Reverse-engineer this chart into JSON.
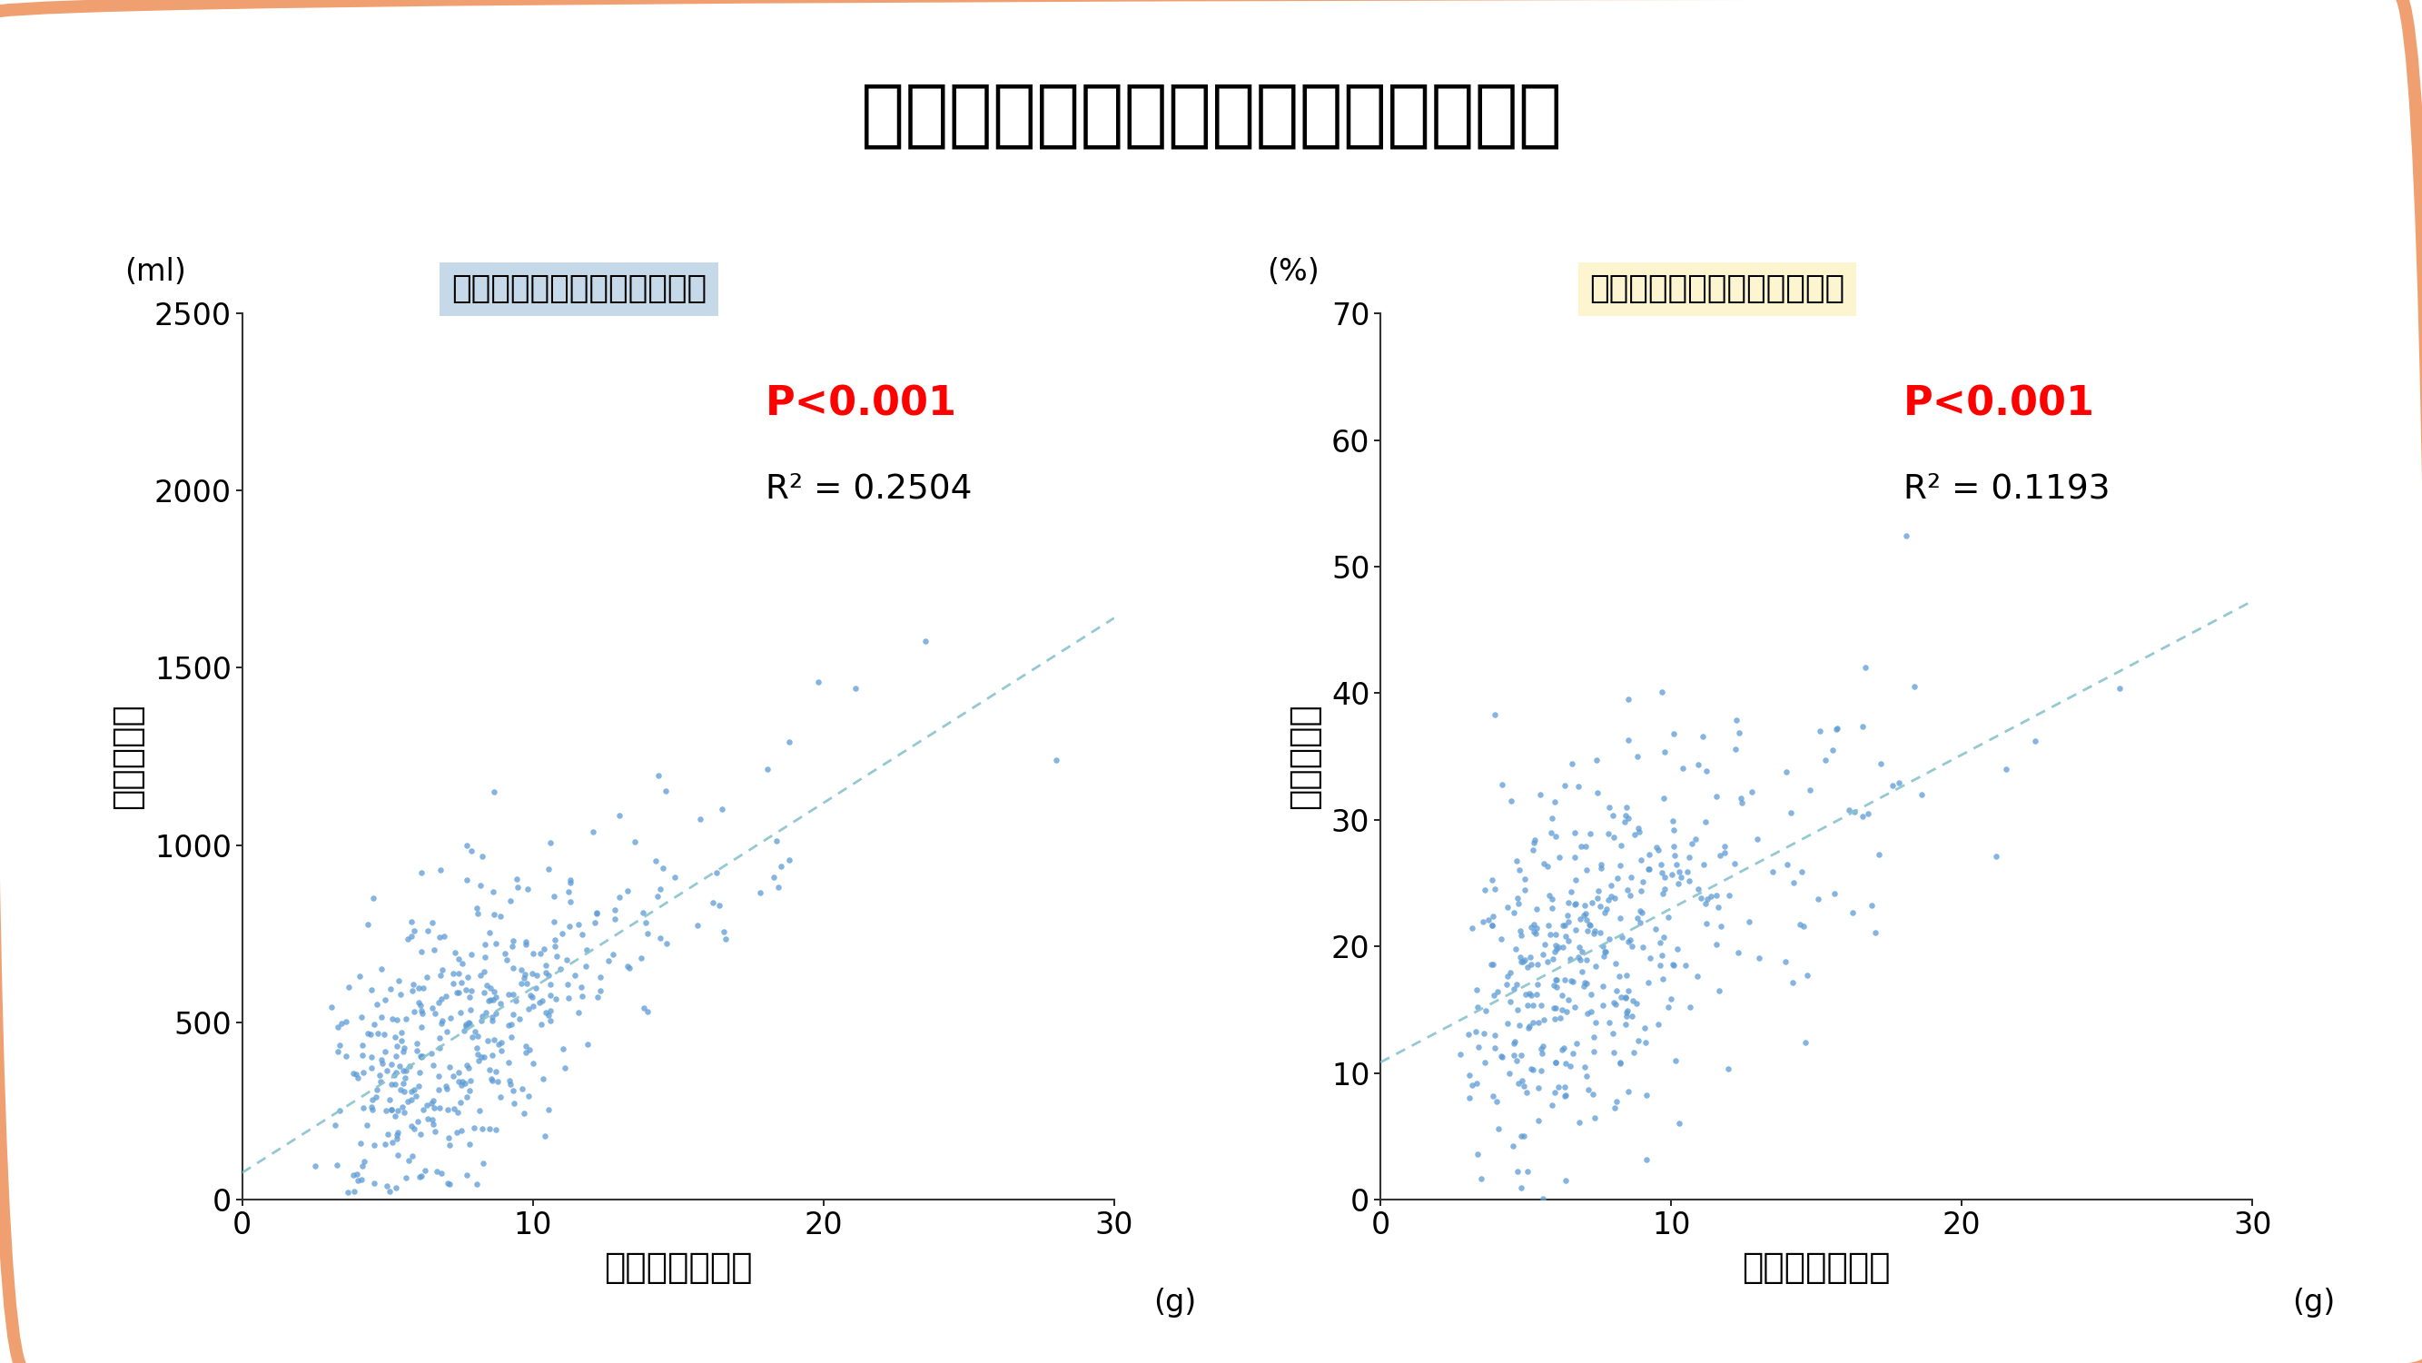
{
  "title": "推定食塩摂取量と夜間排尿との関係",
  "title_fontsize": 58,
  "background_color": "#FFFFFF",
  "border_color": "#F0A070",
  "border_lw": 10,
  "left_plot": {
    "subtitle": "推定食塩摂取量と夜間排尿量",
    "subtitle_bg": "#C5D9E8",
    "xlabel": "推定食塩摂取量",
    "ylabel": "夜間排尿量",
    "xlabel_unit": "(g)",
    "ylabel_unit": "(ml)",
    "xlim": [
      0,
      30
    ],
    "ylim": [
      0,
      2500
    ],
    "xticks": [
      0,
      10,
      20,
      30
    ],
    "yticks": [
      0,
      500,
      1000,
      1500,
      2000,
      2500
    ],
    "r2": "0.2504",
    "p_text": "P<0.001",
    "dot_color": "#5B9BD5",
    "line_color": "#8AC4CE",
    "seed": 42,
    "n_points": 430,
    "x_mean": 7.5,
    "x_sigma": 0.42,
    "slope": 50.0,
    "intercept": 100.0,
    "noise_std": 200.0,
    "x_min": 0.5,
    "x_max": 28.0
  },
  "right_plot": {
    "subtitle": "推定食塩摂取量と夜間尿量率",
    "subtitle_bg": "#FDF5D0",
    "xlabel": "推定食塩摂取量",
    "ylabel": "夜間尿量率",
    "xlabel_unit": "(g)",
    "ylabel_unit": "(%)",
    "xlim": [
      0,
      30
    ],
    "ylim": [
      0,
      70
    ],
    "xticks": [
      0,
      10,
      20,
      30
    ],
    "yticks": [
      0,
      10,
      20,
      30,
      40,
      50,
      60,
      70
    ],
    "r2": "0.1193",
    "p_text": "P<0.001",
    "dot_color": "#5B9BD5",
    "line_color": "#8AC4CE",
    "seed": 77,
    "n_points": 430,
    "x_mean": 7.5,
    "x_sigma": 0.42,
    "slope": 1.3,
    "intercept": 10.0,
    "noise_std": 7.0,
    "x_min": 0.5,
    "x_max": 28.0
  },
  "tick_fontsize": 24,
  "label_fontsize": 28,
  "unit_fontsize": 24,
  "subtitle_fontsize": 26,
  "annot_fontsize": 27,
  "p_fontsize": 32,
  "ylabel_fontsize": 28
}
